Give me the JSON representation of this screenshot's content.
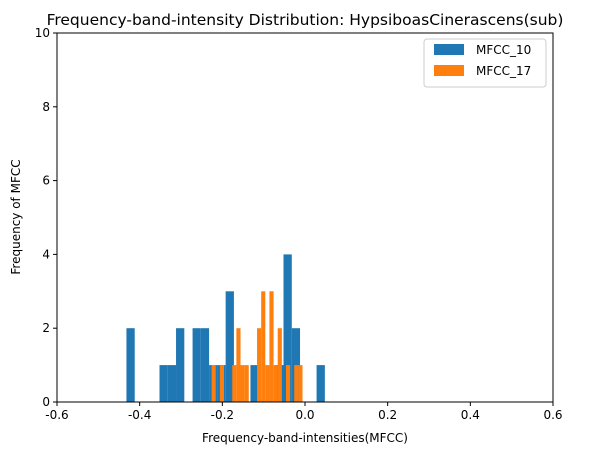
{
  "chart_data": {
    "type": "histogram",
    "title": "Frequency-band-intensity Distribution: HypsiboasCinerascens(sub)",
    "xlabel": "Frequency-band-intensities(MFCC)",
    "ylabel": "Frequency of MFCC",
    "xlim": [
      -0.6,
      0.6
    ],
    "ylim": [
      0,
      10
    ],
    "xticks": [
      "-0.6",
      "-0.4",
      "-0.2",
      "0.0",
      "0.2",
      "0.4",
      "0.6"
    ],
    "yticks": [
      "0",
      "2",
      "4",
      "6",
      "8",
      "10"
    ],
    "legend_position": "top-right",
    "series": [
      {
        "name": "MFCC_10",
        "color": "#1f77b4",
        "bins": [
          {
            "x0": -0.432,
            "x1": -0.412,
            "count": 2
          },
          {
            "x0": -0.352,
            "x1": -0.332,
            "count": 1
          },
          {
            "x0": -0.332,
            "x1": -0.312,
            "count": 1
          },
          {
            "x0": -0.312,
            "x1": -0.292,
            "count": 2
          },
          {
            "x0": -0.272,
            "x1": -0.252,
            "count": 2
          },
          {
            "x0": -0.252,
            "x1": -0.232,
            "count": 2
          },
          {
            "x0": -0.232,
            "x1": -0.212,
            "count": 1
          },
          {
            "x0": -0.212,
            "x1": -0.192,
            "count": 1
          },
          {
            "x0": -0.192,
            "x1": -0.172,
            "count": 3
          },
          {
            "x0": -0.132,
            "x1": -0.112,
            "count": 1
          },
          {
            "x0": -0.072,
            "x1": -0.052,
            "count": 1
          },
          {
            "x0": -0.052,
            "x1": -0.032,
            "count": 4
          },
          {
            "x0": -0.032,
            "x1": -0.012,
            "count": 2
          },
          {
            "x0": 0.028,
            "x1": 0.048,
            "count": 1
          }
        ]
      },
      {
        "name": "MFCC_17",
        "color": "#ff7f0e",
        "bins": [
          {
            "x0": -0.226,
            "x1": -0.216,
            "count": 1
          },
          {
            "x0": -0.206,
            "x1": -0.196,
            "count": 1
          },
          {
            "x0": -0.176,
            "x1": -0.166,
            "count": 1
          },
          {
            "x0": -0.166,
            "x1": -0.156,
            "count": 2
          },
          {
            "x0": -0.156,
            "x1": -0.146,
            "count": 1
          },
          {
            "x0": -0.146,
            "x1": -0.136,
            "count": 1
          },
          {
            "x0": -0.116,
            "x1": -0.106,
            "count": 2
          },
          {
            "x0": -0.106,
            "x1": -0.096,
            "count": 3
          },
          {
            "x0": -0.096,
            "x1": -0.086,
            "count": 1
          },
          {
            "x0": -0.086,
            "x1": -0.076,
            "count": 3
          },
          {
            "x0": -0.076,
            "x1": -0.066,
            "count": 1
          },
          {
            "x0": -0.066,
            "x1": -0.056,
            "count": 2
          },
          {
            "x0": -0.046,
            "x1": -0.036,
            "count": 1
          },
          {
            "x0": -0.026,
            "x1": -0.016,
            "count": 1
          },
          {
            "x0": -0.016,
            "x1": -0.006,
            "count": 1
          }
        ]
      }
    ]
  }
}
